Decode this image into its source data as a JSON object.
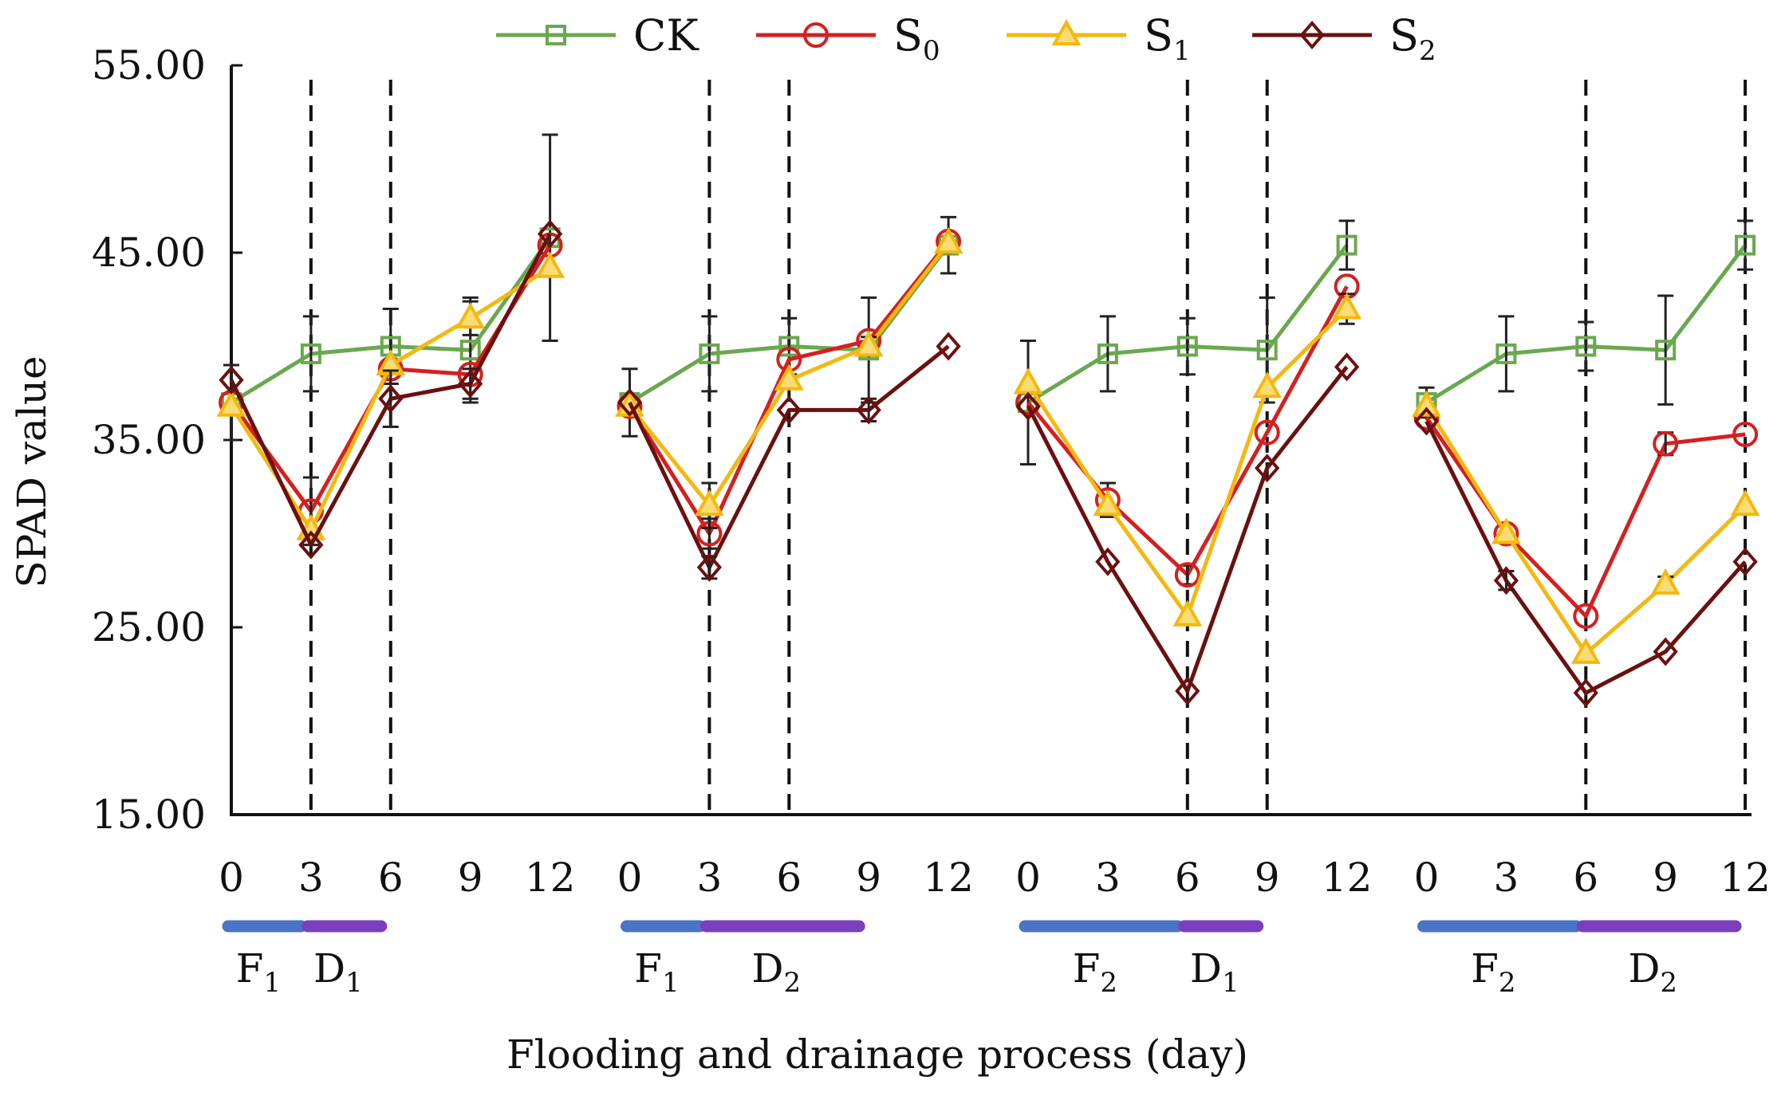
{
  "chart_data": {
    "type": "line",
    "title": "",
    "xlabel": "Flooding and drainage process (day)",
    "ylabel": "SPAD value",
    "ylim": [
      15,
      55
    ],
    "yticks": [
      "15.00",
      "25.00",
      "35.00",
      "45.00",
      "55.00"
    ],
    "x_days": [
      0,
      3,
      6,
      9,
      12
    ],
    "panels": [
      {
        "phases": [
          {
            "base": "F",
            "sub": "1",
            "from": 0,
            "to": 3
          },
          {
            "base": "D",
            "sub": "1",
            "from": 3,
            "to": 6
          }
        ],
        "dashed_days": [
          3,
          6
        ]
      },
      {
        "phases": [
          {
            "base": "F",
            "sub": "1",
            "from": 0,
            "to": 3
          },
          {
            "base": "D",
            "sub": "2",
            "from": 3,
            "to": 9
          }
        ],
        "dashed_days": [
          3,
          6
        ]
      },
      {
        "phases": [
          {
            "base": "F",
            "sub": "2",
            "from": 0,
            "to": 6
          },
          {
            "base": "D",
            "sub": "1",
            "from": 6,
            "to": 9
          }
        ],
        "dashed_days": [
          6,
          9
        ]
      },
      {
        "phases": [
          {
            "base": "F",
            "sub": "2",
            "from": 0,
            "to": 6
          },
          {
            "base": "D",
            "sub": "2",
            "from": 6,
            "to": 12
          }
        ],
        "dashed_days": [
          6,
          12
        ]
      }
    ],
    "series": [
      {
        "name": "CK",
        "base": "CK",
        "sub": "",
        "color": "#6aa84f",
        "marker": "square",
        "values": [
          [
            37.0,
            39.6,
            40.0,
            39.8,
            45.8
          ],
          [
            37.0,
            39.6,
            40.0,
            39.8,
            45.4
          ],
          [
            37.0,
            39.6,
            40.0,
            39.8,
            45.4
          ],
          [
            37.0,
            39.6,
            40.0,
            39.8,
            45.4
          ]
        ],
        "errors": [
          [
            2.0,
            2.0,
            2.0,
            2.8,
            5.5
          ],
          [
            1.8,
            2.0,
            1.5,
            2.8,
            1.5
          ],
          [
            3.3,
            2.0,
            1.5,
            2.8,
            1.3
          ],
          [
            0.8,
            2.0,
            1.3,
            2.9,
            1.3
          ]
        ]
      },
      {
        "name": "S0",
        "base": "S",
        "sub": "0",
        "color": "#d42020",
        "marker": "circle",
        "values": [
          [
            37.0,
            31.2,
            38.8,
            38.5,
            45.4
          ],
          [
            36.8,
            30.0,
            39.3,
            40.3,
            45.6
          ],
          [
            37.0,
            31.8,
            27.8,
            35.4,
            43.2
          ],
          [
            36.2,
            30.0,
            25.6,
            34.8,
            35.3
          ]
        ],
        "errors": [
          [
            0,
            1.8,
            0,
            0,
            0
          ],
          [
            0,
            0.8,
            0,
            0,
            0
          ],
          [
            0,
            0.9,
            0.5,
            0,
            0
          ],
          [
            0,
            0,
            0,
            0.6,
            0
          ]
        ]
      },
      {
        "name": "S1",
        "base": "S",
        "sub": "1",
        "color": "#f4b810",
        "marker": "triangle",
        "values": [
          [
            36.8,
            30.2,
            39.0,
            41.5,
            44.2
          ],
          [
            36.8,
            31.5,
            38.2,
            40.0,
            45.5
          ],
          [
            38.0,
            31.5,
            25.6,
            37.8,
            42.0
          ],
          [
            36.8,
            30.0,
            23.6,
            27.3,
            31.5
          ]
        ],
        "errors": [
          [
            0,
            0,
            0,
            0.9,
            0
          ],
          [
            0,
            1.2,
            0,
            0.5,
            0
          ],
          [
            0,
            0,
            0,
            0,
            0.8
          ],
          [
            0,
            0,
            0,
            0.4,
            0
          ]
        ]
      },
      {
        "name": "S2",
        "base": "S",
        "sub": "2",
        "color": "#6b1010",
        "marker": "diamond",
        "values": [
          [
            38.2,
            29.4,
            37.2,
            38.0,
            46.0
          ],
          [
            37.0,
            28.2,
            36.6,
            36.6,
            40.0
          ],
          [
            36.8,
            28.5,
            21.6,
            33.5,
            38.9
          ],
          [
            36.0,
            27.5,
            21.5,
            23.7,
            28.5
          ]
        ],
        "errors": [
          [
            0,
            0,
            1.5,
            0.8,
            0
          ],
          [
            0,
            0.6,
            0,
            0.6,
            0
          ],
          [
            0,
            0,
            0,
            0,
            0
          ],
          [
            0,
            0.5,
            0,
            0,
            0
          ]
        ]
      }
    ]
  }
}
